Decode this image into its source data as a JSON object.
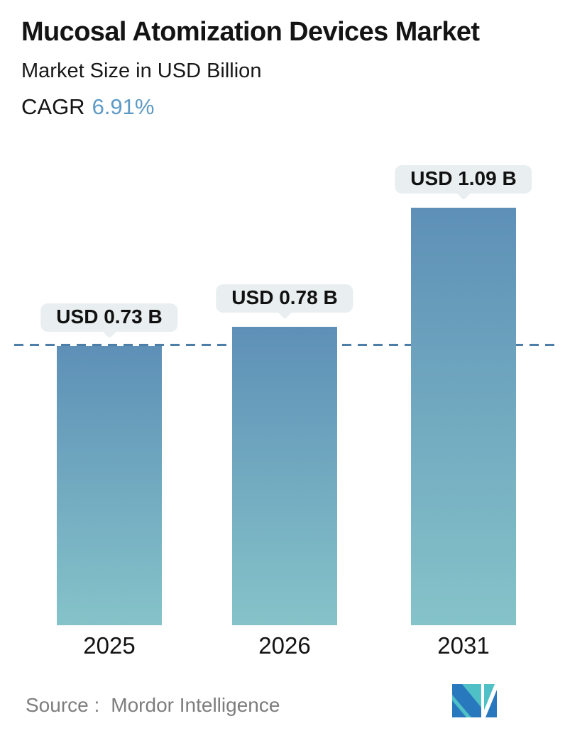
{
  "header": {
    "title": "Mucosal Atomization Devices Market",
    "subtitle": "Market Size in USD Billion",
    "cagr_label": "CAGR",
    "cagr_value": "6.91%"
  },
  "chart_data": {
    "type": "bar",
    "title": "Mucosal Atomization Devices Market",
    "subtitle": "Market Size in USD Billion",
    "cagr": "6.91%",
    "unit": "USD Billion",
    "categories": [
      "2025",
      "2026",
      "2031"
    ],
    "values": [
      0.73,
      0.78,
      1.09
    ],
    "value_labels": [
      "USD 0.73 B",
      "USD 0.78 B",
      "USD 1.09 B"
    ],
    "ylim": [
      0,
      1.2
    ],
    "xlabel": "",
    "ylabel": "Market Size (USD Billion)",
    "legend": "none",
    "grid": "single horizontal dashed reference line at 2025 value (0.73)",
    "reference_line_value": 0.73
  },
  "footer": {
    "source_label": "Source :",
    "source_value": "Mordor Intelligence"
  },
  "colors": {
    "text_dark": "#141414",
    "text_muted": "#7d7d7d",
    "accent": "#5e9ac6",
    "bar_top": "#5e90b7",
    "bar_bottom": "#85c3c9",
    "dashed": "#4d7ea8",
    "bubble_bg": "#e9eef0",
    "logo_teal": "#4fc0c5",
    "logo_blue": "#2878be"
  }
}
